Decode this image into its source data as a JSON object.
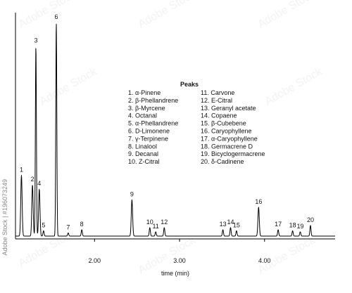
{
  "chart_data": {
    "type": "line",
    "title": "",
    "xlabel": "time (min)",
    "ylabel": "",
    "xlim": [
      1.07,
      4.83
    ],
    "ylim": [
      0,
      100
    ],
    "x_ticks": [
      2.0,
      3.0,
      4.0
    ],
    "x_tick_labels": [
      "2.00",
      "3.00",
      "4.00"
    ],
    "grid": false,
    "legend": {
      "title": "Peaks",
      "placement": "top-center",
      "items": [
        "1. α-Pinene",
        "2. β-Phellandrene",
        "3. β-Myrcene",
        "4. Octanal",
        "5. α-Phellandrene",
        "6. D-Limonene",
        "7. γ-Terpinene",
        "8. Linalool",
        "9. Decanal",
        "10. Z-Citral",
        "11. Carvone",
        "12. E-Citral",
        "13. Geranyl acetate",
        "14. Copaene",
        "15. β-Cubebene",
        "16. Caryophyllene",
        "17. α-Caryophyllene",
        "18. Germacrene D",
        "19. Bicyclogermacrene",
        "20. δ-Cadinene"
      ]
    },
    "peaks": [
      {
        "label": "1",
        "time": 1.14,
        "height": 28.5
      },
      {
        "label": "2",
        "time": 1.27,
        "height": 24.0
      },
      {
        "label": "3",
        "time": 1.31,
        "height": 89.0
      },
      {
        "label": "4",
        "time": 1.35,
        "height": 22.0
      },
      {
        "label": "5",
        "time": 1.4,
        "height": 2.5
      },
      {
        "label": "6",
        "time": 1.55,
        "height": 100.0
      },
      {
        "label": "7",
        "time": 1.69,
        "height": 1.5
      },
      {
        "label": "8",
        "time": 1.85,
        "height": 3.0
      },
      {
        "label": "9",
        "time": 2.44,
        "height": 17.0
      },
      {
        "label": "10",
        "time": 2.65,
        "height": 4.0
      },
      {
        "label": "11",
        "time": 2.72,
        "height": 2.0
      },
      {
        "label": "12",
        "time": 2.82,
        "height": 4.0
      },
      {
        "label": "13",
        "time": 3.51,
        "height": 3.0
      },
      {
        "label": "14",
        "time": 3.6,
        "height": 4.0
      },
      {
        "label": "15",
        "time": 3.67,
        "height": 2.5
      },
      {
        "label": "16",
        "time": 3.93,
        "height": 13.5
      },
      {
        "label": "17",
        "time": 4.16,
        "height": 3.0
      },
      {
        "label": "18",
        "time": 4.33,
        "height": 2.5
      },
      {
        "label": "19",
        "time": 4.42,
        "height": 2.0
      },
      {
        "label": "20",
        "time": 4.54,
        "height": 5.0
      }
    ],
    "series": [
      {
        "values_from": "peaks",
        "color": "#000000"
      }
    ]
  },
  "watermark": {
    "side_text": "Adobe Stock | #196073249",
    "overlay_text": "Adobe Stock"
  },
  "colors": {
    "trace": "#000000",
    "axis": "#000000",
    "text": "#111111",
    "watermark": "#d9d9d9"
  }
}
